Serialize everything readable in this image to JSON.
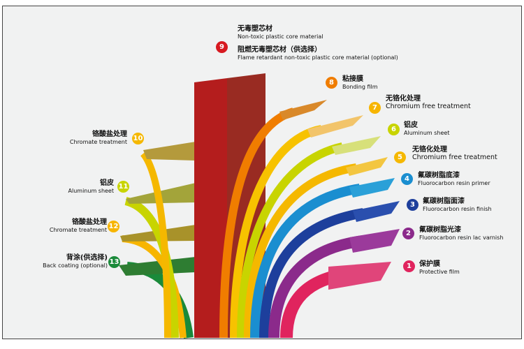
{
  "layers": [
    {
      "num": "1",
      "cn": "保护膜",
      "en": "Protective film",
      "color": "#e0245e"
    },
    {
      "num": "2",
      "cn": "氟碳树脂光漆",
      "en": "Fluorocarbon resin lac varnish",
      "color": "#8b2a8b"
    },
    {
      "num": "3",
      "cn": "氟碳树脂面漆",
      "en": "Fluorocarbon resin finish",
      "color": "#1d3f9c"
    },
    {
      "num": "4",
      "cn": "氟碳树脂底漆",
      "en": "Fluorocarbon resin primer",
      "color": "#1a8ed0"
    },
    {
      "num": "5",
      "cn": "无铬化处理",
      "en": "Chromium free treatment",
      "color": "#f5b800"
    },
    {
      "num": "6",
      "cn": "铝皮",
      "en": "Aluminum sheet",
      "color": "#c8d400"
    },
    {
      "num": "7",
      "cn": "无铬化处理",
      "en": "Chromium free treatment",
      "color": "#f7c200"
    },
    {
      "num": "8",
      "cn": "粘接膜",
      "en": "Bonding film",
      "color": "#f07d00"
    },
    {
      "num": "9",
      "cn": "无毒塑芯材",
      "en": "Non-toxic plastic core material",
      "cn2": "阻燃无毒塑芯材（供选择）",
      "en2": "Flame retardant non-toxic plastic core material (optional)",
      "color": "#d71920"
    },
    {
      "num": "10",
      "cn": "铬酸盐处理",
      "en": "Chromate treatment",
      "color": "#f5b800"
    },
    {
      "num": "11",
      "cn": "铝皮",
      "en": "Aluminum sheet",
      "color": "#c8d400"
    },
    {
      "num": "12",
      "cn": "铬酸盐处理",
      "en": "Chromate treatment",
      "color": "#f7b500"
    },
    {
      "num": "13",
      "cn": "背涂(供选择)",
      "en": "Back coating (optional)",
      "color": "#1a8a3a"
    }
  ]
}
